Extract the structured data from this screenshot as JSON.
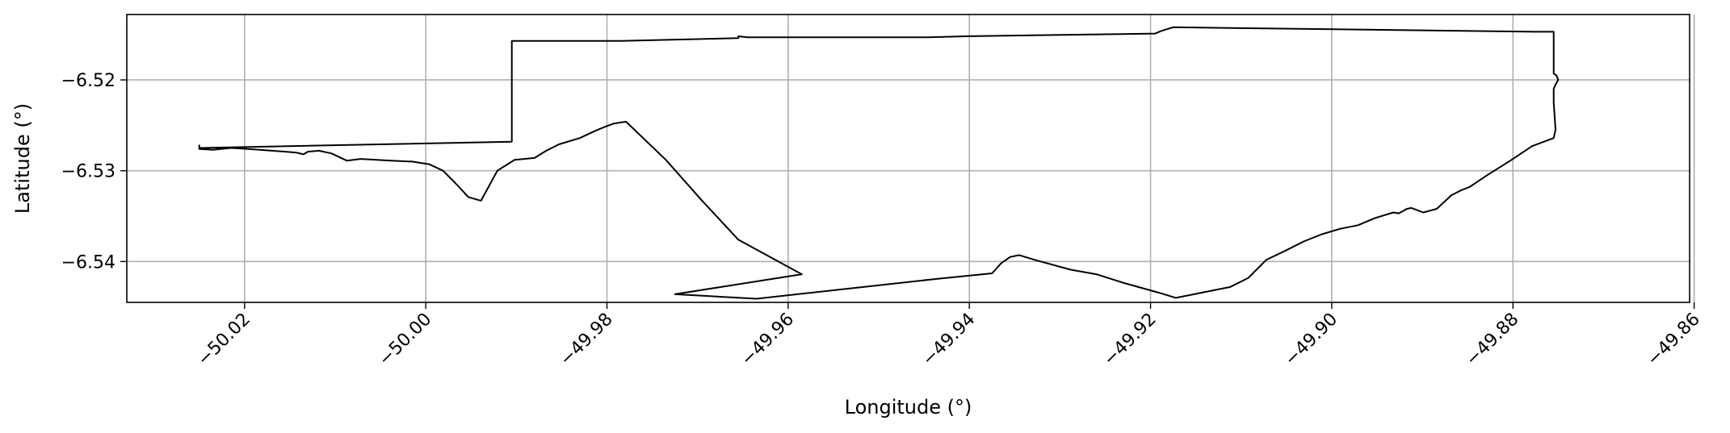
{
  "chart_data": {
    "type": "line",
    "title": "",
    "xlabel": "Longitude (°)",
    "ylabel": "Latitude (°)",
    "xlim": [
      -50.033,
      -49.8605
    ],
    "ylim": [
      -6.5445,
      -6.5128
    ],
    "grid": true,
    "colors": {
      "line": "#000000",
      "grid": "#b0b0b0",
      "frame": "#000000"
    },
    "x_ticks": [
      -50.02,
      -50.0,
      -49.98,
      -49.96,
      -49.94,
      -49.92,
      -49.9,
      -49.88,
      -49.86
    ],
    "x_tick_labels": [
      "−50.02",
      "−50.00",
      "−49.98",
      "−49.96",
      "−49.94",
      "−49.92",
      "−49.90",
      "−49.88",
      "−49.86"
    ],
    "y_ticks": [
      -6.52,
      -6.53,
      -6.54
    ],
    "y_tick_labels": [
      "−6.52",
      "−6.53",
      "−6.54"
    ],
    "series": [
      {
        "closed": true,
        "x": [
          -50.025,
          -50.025,
          -49.9905,
          -49.9905,
          -49.9785,
          -49.9655,
          -49.9655,
          -49.9645,
          -49.9445,
          -49.9405,
          -49.9195,
          -49.9188,
          -49.9175,
          -49.8775,
          -49.8755,
          -49.8755,
          -49.8752,
          -49.875,
          -49.8753,
          -49.8755,
          -49.8755,
          -49.8755,
          -49.8753,
          -49.8755,
          -49.8779,
          -49.8803,
          -49.8827,
          -49.8839,
          -49.8848,
          -49.8856,
          -49.8868,
          -49.8884,
          -49.8899,
          -49.8912,
          -49.8917,
          -49.8926,
          -49.8932,
          -49.8952,
          -49.8971,
          -49.8991,
          -49.9011,
          -49.9031,
          -49.9051,
          -49.9072,
          -49.9092,
          -49.9112,
          -49.9152,
          -49.9172,
          -49.9192,
          -49.9228,
          -49.926,
          -49.9288,
          -49.9325,
          -49.9335,
          -49.9345,
          -49.9355,
          -49.9365,
          -49.9375,
          -49.9435,
          -49.9535,
          -49.9635,
          -49.9725,
          -49.9585,
          -49.9655,
          -49.9695,
          -49.9735,
          -49.9779,
          -49.9792,
          -49.9803,
          -49.9815,
          -49.983,
          -49.9853,
          -49.9867,
          -49.988,
          -49.9902,
          -49.9921,
          -49.9939,
          -49.9953,
          -49.9967,
          -49.9981,
          -49.9996,
          -50.0015,
          -50.0038,
          -50.0054,
          -50.0072,
          -50.0087,
          -50.0104,
          -50.0118,
          -50.013,
          -50.0135,
          -50.0143,
          -50.0155,
          -50.017,
          -50.0196,
          -50.0215,
          -50.0235,
          -50.025
        ],
        "y": [
          -6.5272,
          -6.5275,
          -6.5268,
          -6.5157,
          -6.5157,
          -6.5154,
          -6.5152,
          -6.5153,
          -6.5153,
          -6.5152,
          -6.5149,
          -6.5146,
          -6.5142,
          -6.5147,
          -6.5147,
          -6.5193,
          -6.5195,
          -6.52,
          -6.5205,
          -6.521,
          -6.5215,
          -6.5225,
          -6.5255,
          -6.5264,
          -6.5273,
          -6.5289,
          -6.5304,
          -6.5312,
          -6.5318,
          -6.5321,
          -6.5327,
          -6.5342,
          -6.5346,
          -6.5341,
          -6.5342,
          -6.5347,
          -6.5346,
          -6.5352,
          -6.536,
          -6.5364,
          -6.537,
          -6.5378,
          -6.5388,
          -6.5398,
          -6.5418,
          -6.5428,
          -6.5436,
          -6.544,
          -6.5434,
          -6.5424,
          -6.5414,
          -6.5409,
          -6.5399,
          -6.5396,
          -6.5393,
          -6.5395,
          -6.5402,
          -6.5413,
          -6.5419,
          -6.543,
          -6.5441,
          -6.5436,
          -6.5414,
          -6.5376,
          -6.5333,
          -6.5288,
          -6.5246,
          -6.5248,
          -6.5252,
          -6.5257,
          -6.5264,
          -6.5271,
          -6.5278,
          -6.5286,
          -6.5288,
          -6.53,
          -6.5333,
          -6.5329,
          -6.5314,
          -6.53,
          -6.5293,
          -6.529,
          -6.5289,
          -6.5288,
          -6.5287,
          -6.5289,
          -6.5281,
          -6.5278,
          -6.5279,
          -6.5282,
          -6.528,
          -6.5279,
          -6.5278,
          -6.5276,
          -6.5275,
          -6.5277,
          -6.5276
        ]
      }
    ]
  }
}
